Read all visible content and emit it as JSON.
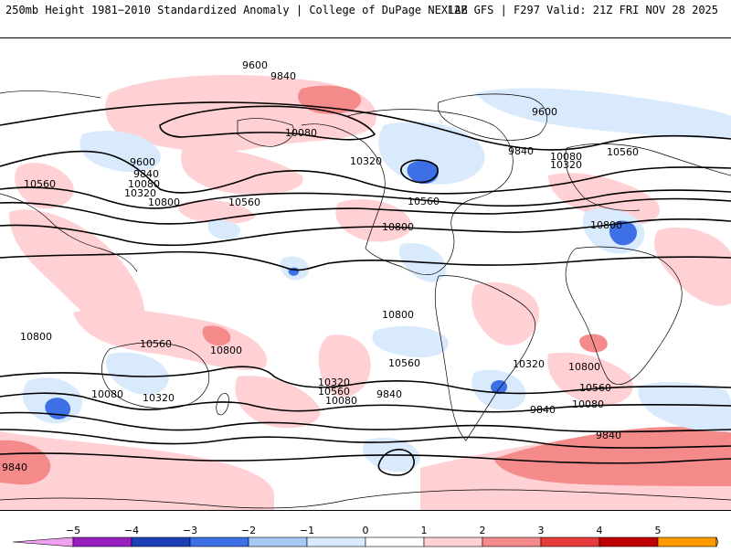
{
  "header": {
    "title_left": "250mb Height 1981−2010 Standardized Anomaly | College of DuPage NEXLAB",
    "title_right": "12Z GFS | F297 Valid: 21Z FRI NOV 28 2025"
  },
  "contour_labels": [
    {
      "id": "c1",
      "text": "9600"
    },
    {
      "id": "c2",
      "text": "9840"
    },
    {
      "id": "c3",
      "text": "9600"
    },
    {
      "id": "c4",
      "text": "10080"
    },
    {
      "id": "c5",
      "text": "9600"
    },
    {
      "id": "c6",
      "text": "9840"
    },
    {
      "id": "c7",
      "text": "10080"
    },
    {
      "id": "c8",
      "text": "10320"
    },
    {
      "id": "c9",
      "text": "10560"
    },
    {
      "id": "c10",
      "text": "10560"
    },
    {
      "id": "c11",
      "text": "10800"
    },
    {
      "id": "c12",
      "text": "10320"
    },
    {
      "id": "c13",
      "text": "10560"
    },
    {
      "id": "c14",
      "text": "10800"
    },
    {
      "id": "c15",
      "text": "9840"
    },
    {
      "id": "c16",
      "text": "10080"
    },
    {
      "id": "c17",
      "text": "10320"
    },
    {
      "id": "c18",
      "text": "10560"
    },
    {
      "id": "c19",
      "text": "10800"
    },
    {
      "id": "c20",
      "text": "10800"
    },
    {
      "id": "c21",
      "text": "10560"
    },
    {
      "id": "c22",
      "text": "10800"
    },
    {
      "id": "c23",
      "text": "10800"
    },
    {
      "id": "c24",
      "text": "10560"
    },
    {
      "id": "c25",
      "text": "10320"
    },
    {
      "id": "c26",
      "text": "10080"
    },
    {
      "id": "c27",
      "text": "10320"
    },
    {
      "id": "c28",
      "text": "10080"
    },
    {
      "id": "c29",
      "text": "9840"
    },
    {
      "id": "c30",
      "text": "10560"
    },
    {
      "id": "c31",
      "text": "10320"
    },
    {
      "id": "c32",
      "text": "10800"
    },
    {
      "id": "c33",
      "text": "10560"
    },
    {
      "id": "c34",
      "text": "10080"
    },
    {
      "id": "c35",
      "text": "9840"
    },
    {
      "id": "c36",
      "text": "9840"
    },
    {
      "id": "c37",
      "text": "9840"
    }
  ],
  "colorbar": {
    "ticks": [
      "−5",
      "−4",
      "−3",
      "−2",
      "−1",
      "0",
      "1",
      "2",
      "3",
      "4",
      "5"
    ],
    "colors": [
      "#f0a0f0",
      "#9a1fc0",
      "#1c3fb8",
      "#3d6fe6",
      "#a6c8f5",
      "#d9eafc",
      "#ffffff",
      "#ffd0d4",
      "#f58a8a",
      "#e83c3c",
      "#c00000",
      "#ff9a00",
      "#ffc840"
    ]
  }
}
